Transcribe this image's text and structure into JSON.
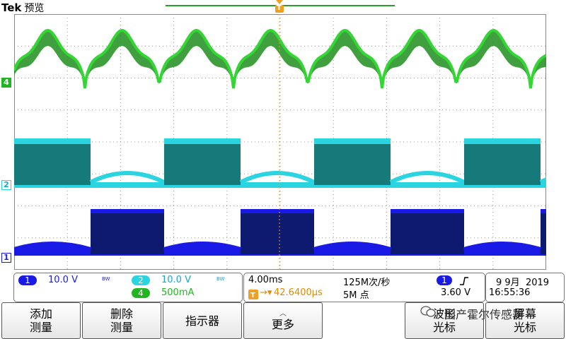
{
  "header": {
    "brand": "Tek",
    "mode": "预览",
    "trigger_marker": "T"
  },
  "channels": {
    "ch1": {
      "number": "1",
      "marker": "1",
      "scale": "10.0 V",
      "bw": "BW",
      "color": "#1a1ae6"
    },
    "ch2": {
      "number": "2",
      "marker": "2",
      "scale": "10.0 V",
      "bw": "BW",
      "color": "#2ad4e0"
    },
    "ch4": {
      "number": "4",
      "marker": "4",
      "scale": "500mA",
      "color": "#22b522"
    }
  },
  "timebase": {
    "scale": "4.00ms",
    "sample_rate": "125M次/秒",
    "trigger_delay": "42.6400µs",
    "record_length": "5M 点"
  },
  "trigger": {
    "source": "1",
    "slope_icon": "rising-edge-icon",
    "level": "3.60 V"
  },
  "datetime": {
    "date": "9 9月  2019",
    "time": "16:55:36"
  },
  "softkeys": [
    {
      "line1": "添加",
      "line2": "测量"
    },
    {
      "line1": "删除",
      "line2": "测量"
    },
    {
      "line1": "指示器",
      "line2": ""
    },
    {
      "line1": "更多",
      "line2": ""
    },
    {
      "line1": "波形",
      "line2": "光标"
    },
    {
      "line1": "屏幕",
      "line2": "光标"
    }
  ],
  "watermark": "国产霍尔传感器"
}
